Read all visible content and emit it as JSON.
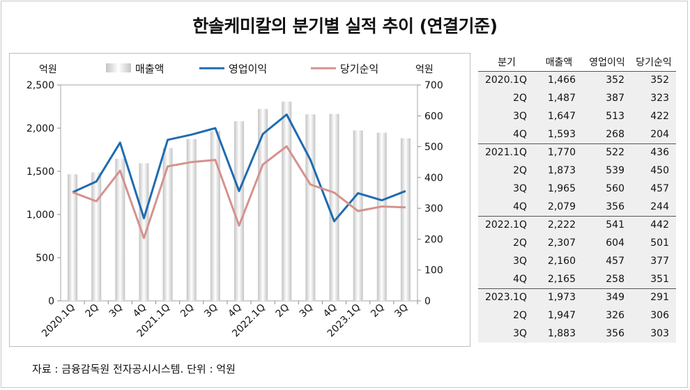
{
  "title": "한솔케미칼의 분기별 실적 추이 (연결기준)",
  "source": "자료 : 금융감독원 전자공시시스템. 단위 : 억원",
  "colors": {
    "bar": "#d9d9d9",
    "operating": "#1f6bb0",
    "net": "#d4928e"
  },
  "chart_data": {
    "type": "bar+line",
    "categories": [
      "2020.1Q",
      "2Q",
      "3Q",
      "4Q",
      "2021.1Q",
      "2Q",
      "3Q",
      "4Q",
      "2022.1Q",
      "2Q",
      "3Q",
      "4Q",
      "2023.1Q",
      "2Q",
      "3Q"
    ],
    "left_axis": {
      "label": "억원",
      "min": 0,
      "max": 2500,
      "ticks": [
        "0",
        "500",
        "1,000",
        "1,500",
        "2,000",
        "2,500"
      ]
    },
    "right_axis": {
      "label": "억원",
      "min": 0,
      "max": 700,
      "ticks": [
        "0",
        "100",
        "200",
        "300",
        "400",
        "500",
        "600",
        "700"
      ]
    },
    "series": [
      {
        "name": "매출액",
        "kind": "bar",
        "axis": "left",
        "values": [
          1466,
          1487,
          1647,
          1593,
          1770,
          1873,
          1965,
          2079,
          2222,
          2307,
          2160,
          2165,
          1973,
          1947,
          1883
        ]
      },
      {
        "name": "영업이익",
        "kind": "line",
        "axis": "right",
        "values": [
          352,
          387,
          513,
          268,
          522,
          539,
          560,
          356,
          541,
          604,
          457,
          258,
          349,
          326,
          356
        ]
      },
      {
        "name": "당기순익",
        "kind": "line",
        "axis": "right",
        "values": [
          352,
          323,
          422,
          204,
          436,
          450,
          457,
          244,
          442,
          501,
          377,
          351,
          291,
          306,
          303
        ]
      }
    ],
    "legend_position": "top"
  },
  "table": {
    "headers": [
      "분기",
      "매출액",
      "영업이익",
      "당기순익"
    ],
    "rows": [
      [
        "2020.1Q",
        "1,466",
        "352",
        "352"
      ],
      [
        "2Q",
        "1,487",
        "387",
        "323"
      ],
      [
        "3Q",
        "1,647",
        "513",
        "422"
      ],
      [
        "4Q",
        "1,593",
        "268",
        "204"
      ],
      [
        "2021.1Q",
        "1,770",
        "522",
        "436"
      ],
      [
        "2Q",
        "1,873",
        "539",
        "450"
      ],
      [
        "3Q",
        "1,965",
        "560",
        "457"
      ],
      [
        "4Q",
        "2,079",
        "356",
        "244"
      ],
      [
        "2022.1Q",
        "2,222",
        "541",
        "442"
      ],
      [
        "2Q",
        "2,307",
        "604",
        "501"
      ],
      [
        "3Q",
        "2,160",
        "457",
        "377"
      ],
      [
        "4Q",
        "2,165",
        "258",
        "351"
      ],
      [
        "2023.1Q",
        "1,973",
        "349",
        "291"
      ],
      [
        "2Q",
        "1,947",
        "326",
        "306"
      ],
      [
        "3Q",
        "1,883",
        "356",
        "303"
      ]
    ]
  }
}
